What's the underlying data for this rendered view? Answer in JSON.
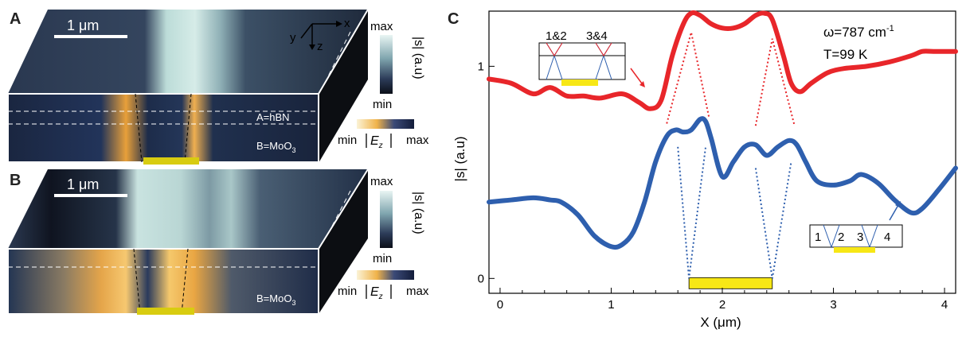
{
  "panels": {
    "a": {
      "letter": "A",
      "scale_bar": "1 μm",
      "axes": {
        "x": "x",
        "y": "y",
        "z": "z"
      },
      "colorbar_max": "max",
      "colorbar_min": "min",
      "colorbar_label": "|s| (a.u)",
      "layer_a": "A=hBN",
      "layer_b": "B=MoO",
      "layer_b_sub": "3",
      "field_min": "min",
      "field_max": "max",
      "field_label": "E",
      "field_label_sub": "z"
    },
    "b": {
      "letter": "B",
      "scale_bar": "1 μm",
      "colorbar_max": "max",
      "colorbar_min": "min",
      "colorbar_label": "|s| (a.u)",
      "layer_b": "B=MoO",
      "layer_b_sub": "3",
      "field_min": "min",
      "field_max": "max",
      "field_label": "E",
      "field_label_sub": "z"
    },
    "c": {
      "letter": "C",
      "annotation_omega": "ω=787 cm",
      "annotation_omega_sup": "-1",
      "annotation_temp": "T=99 K",
      "inset_red_labels": [
        "1&2",
        "3&4"
      ],
      "inset_blue_labels": [
        "1",
        "2",
        "3",
        "4"
      ]
    }
  },
  "colors": {
    "red_curve": "#e8262a",
    "blue_curve": "#2e5fae",
    "gold_bar": "#f7e716",
    "dark_surface": "#1b2334",
    "bright_stripe": "#cde6e4"
  },
  "chart_data": {
    "type": "line",
    "title": "",
    "xlabel": "X (μm)",
    "ylabel": "|s| (a.u)",
    "xlim": [
      -0.1,
      4.1
    ],
    "ylim": [
      -0.07,
      1.26
    ],
    "xticks": [
      0,
      1,
      2,
      3,
      4
    ],
    "yticks": [
      0,
      1
    ],
    "grid": false,
    "gold_bar_x": [
      1.7,
      2.45
    ],
    "series": [
      {
        "color": "#e8262a",
        "x": [
          -0.1,
          0.1,
          0.3,
          0.45,
          0.6,
          0.75,
          0.9,
          1.1,
          1.25,
          1.35,
          1.45,
          1.55,
          1.65,
          1.72,
          1.8,
          1.9,
          2.0,
          2.1,
          2.2,
          2.3,
          2.38,
          2.45,
          2.55,
          2.62,
          2.7,
          2.8,
          2.95,
          3.1,
          3.3,
          3.5,
          3.7,
          3.8,
          3.9,
          4.1
        ],
        "y": [
          0.94,
          0.92,
          0.87,
          0.9,
          0.86,
          0.86,
          0.85,
          0.87,
          0.83,
          0.8,
          0.84,
          1.05,
          1.2,
          1.25,
          1.24,
          1.2,
          1.18,
          1.18,
          1.2,
          1.24,
          1.25,
          1.22,
          1.05,
          0.92,
          0.88,
          0.92,
          0.97,
          0.99,
          1.0,
          1.02,
          1.05,
          1.07,
          1.07,
          1.07
        ]
      },
      {
        "color": "#2e5fae",
        "x": [
          -0.1,
          0.1,
          0.3,
          0.45,
          0.55,
          0.7,
          0.85,
          1.0,
          1.1,
          1.2,
          1.3,
          1.4,
          1.5,
          1.58,
          1.65,
          1.72,
          1.8,
          1.85,
          1.9,
          2.0,
          2.1,
          2.2,
          2.3,
          2.4,
          2.5,
          2.6,
          2.67,
          2.75,
          2.85,
          3.0,
          3.15,
          3.25,
          3.4,
          3.55,
          3.7,
          3.8,
          3.95,
          4.1
        ],
        "y": [
          0.36,
          0.37,
          0.38,
          0.37,
          0.36,
          0.3,
          0.2,
          0.15,
          0.16,
          0.22,
          0.36,
          0.55,
          0.67,
          0.7,
          0.69,
          0.7,
          0.75,
          0.74,
          0.66,
          0.48,
          0.55,
          0.62,
          0.63,
          0.58,
          0.62,
          0.65,
          0.63,
          0.55,
          0.46,
          0.44,
          0.46,
          0.49,
          0.45,
          0.37,
          0.31,
          0.33,
          0.42,
          0.52
        ]
      }
    ]
  }
}
